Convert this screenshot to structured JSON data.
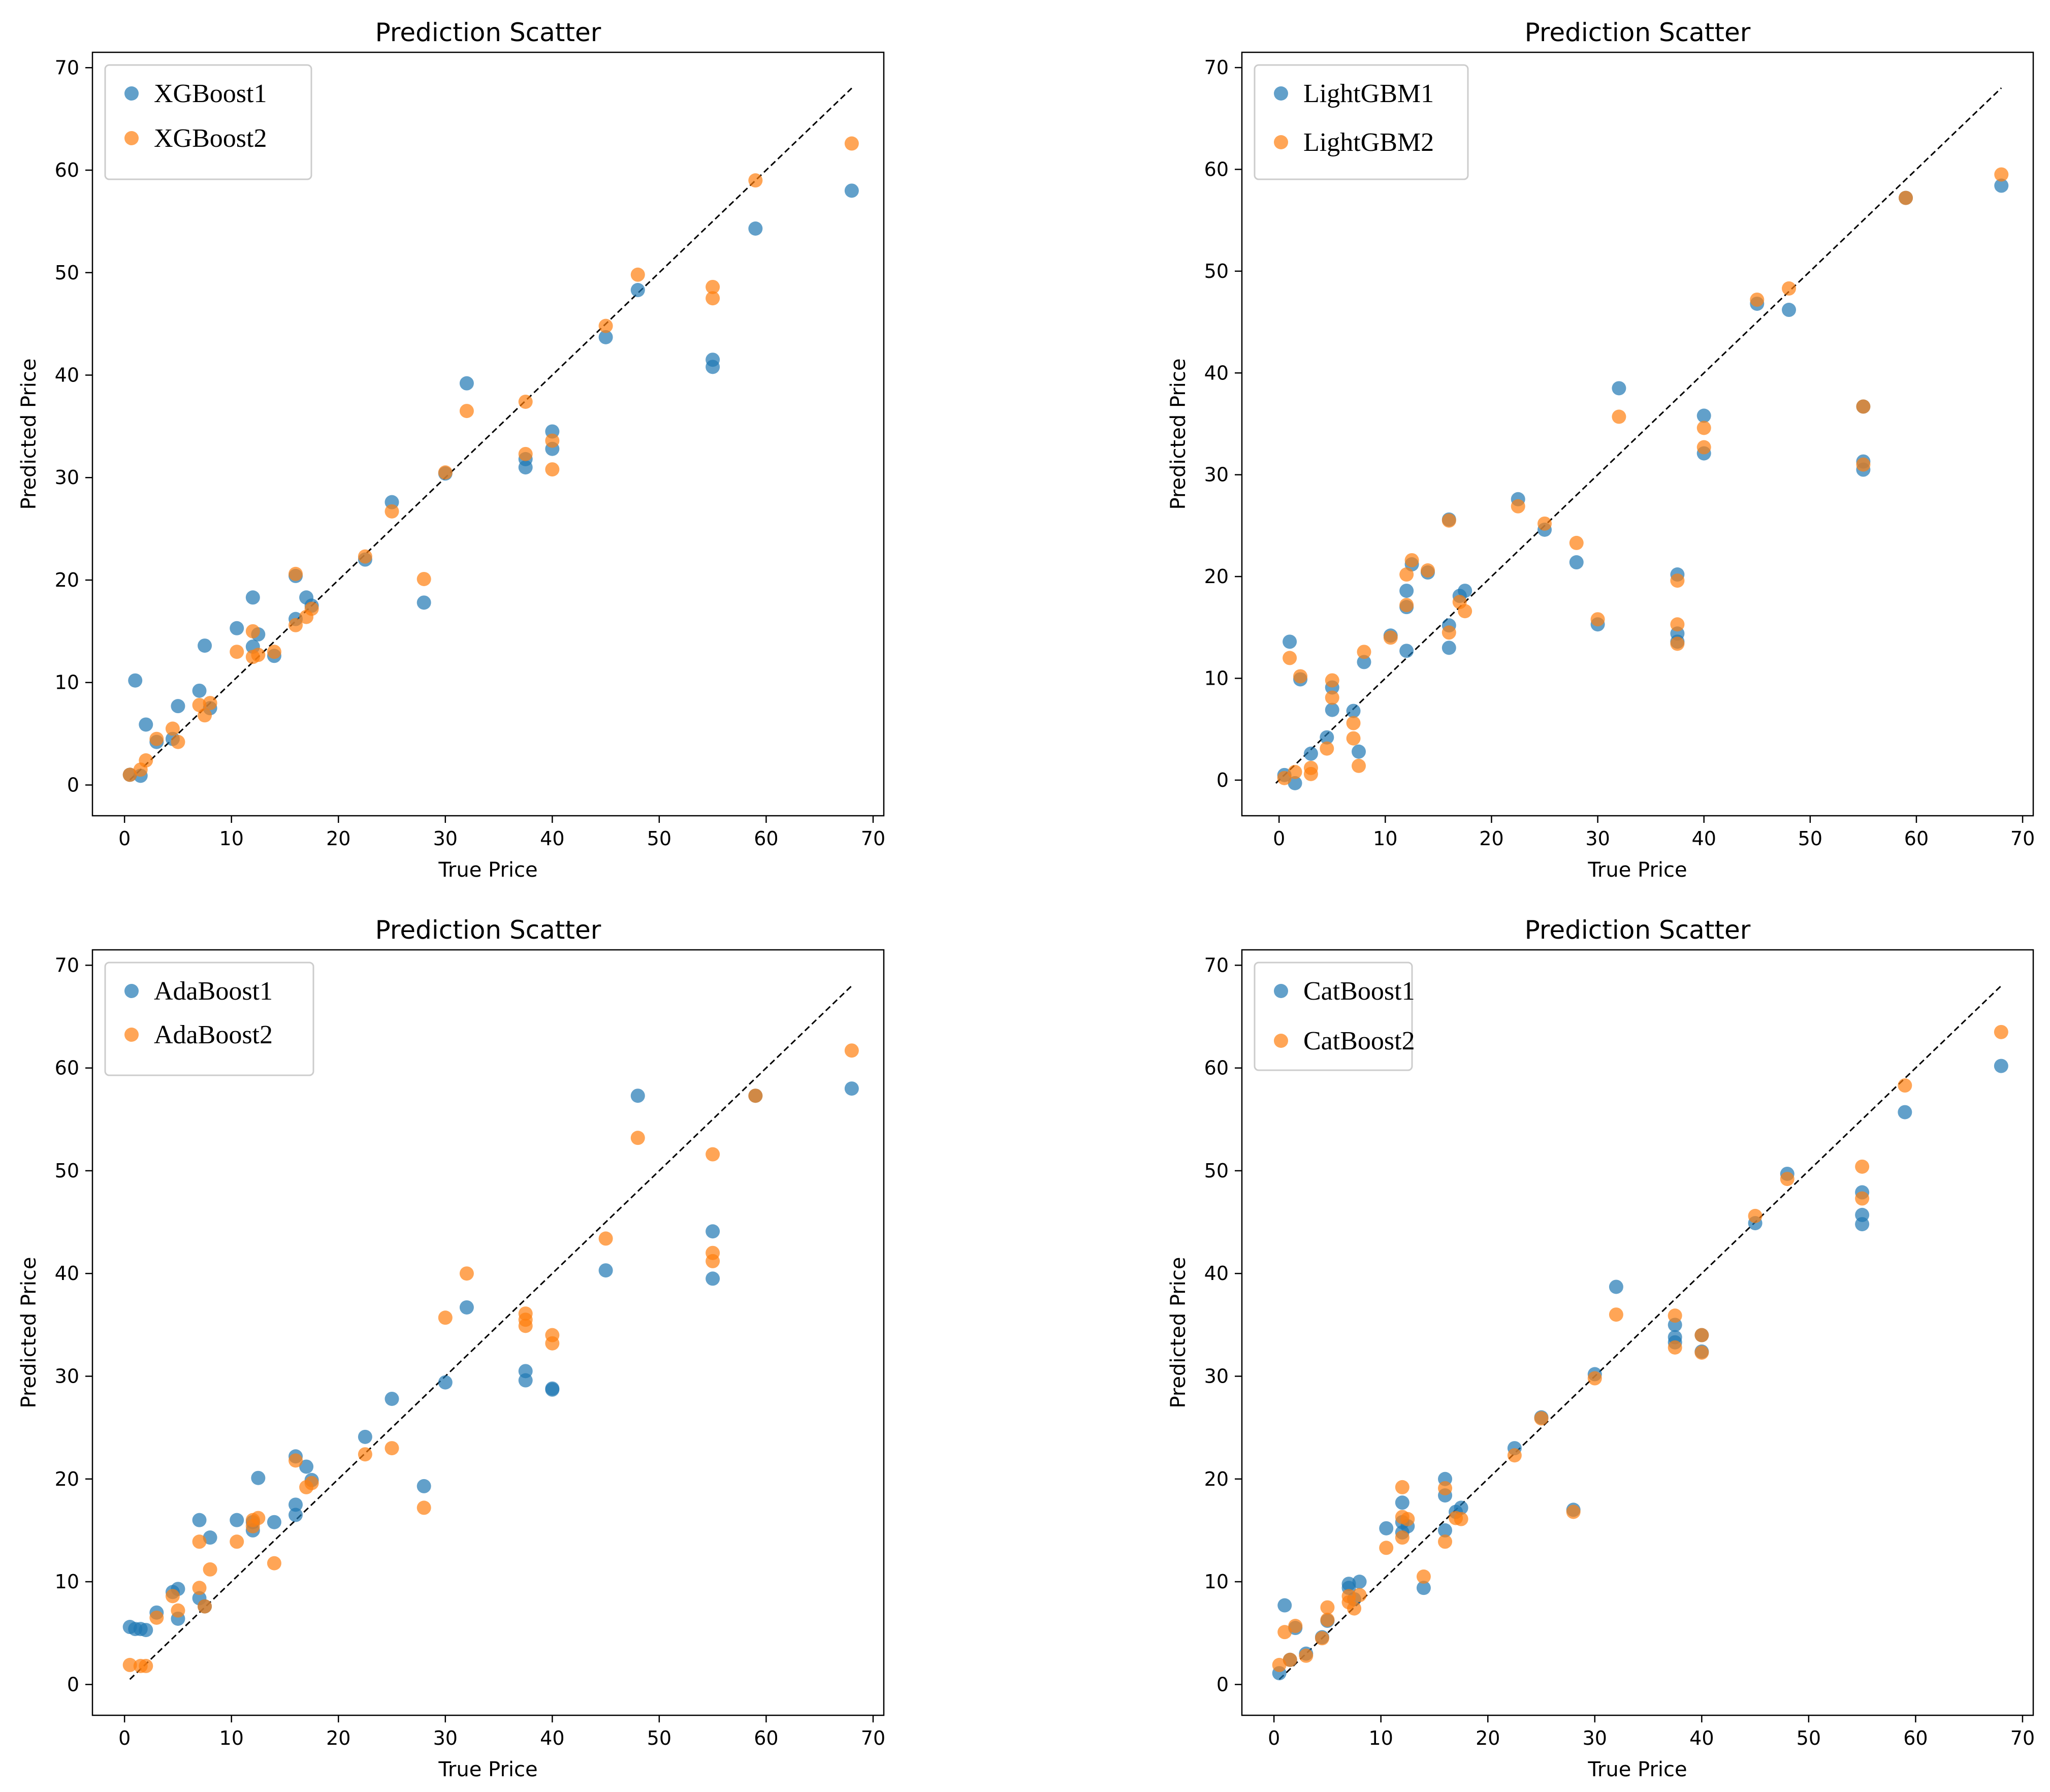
{
  "chart_data": [
    {
      "type": "scatter",
      "title": "Prediction Scatter",
      "xlabel": "True Price",
      "ylabel": "Predicted Price",
      "xlim": [
        -3,
        71
      ],
      "ylim": [
        -3,
        71.5
      ],
      "xticks": [
        "0",
        "10",
        "20",
        "30",
        "40",
        "50",
        "60",
        "70"
      ],
      "yticks": [
        "0",
        "10",
        "20",
        "30",
        "40",
        "50",
        "60",
        "70"
      ],
      "grid": false,
      "legend_position": "top-left",
      "reference_line": {
        "from": [
          0.5,
          0.5
        ],
        "to": [
          68,
          68
        ],
        "style": "dashed"
      },
      "series": [
        {
          "name": "XGBoost1",
          "color": "#1f77b4",
          "x": [
            0.5,
            1.0,
            1.5,
            2.0,
            3.0,
            4.5,
            5.0,
            7.0,
            7.5,
            8.0,
            10.5,
            12.0,
            12.0,
            12.5,
            14.0,
            16.0,
            16.0,
            17.0,
            17.5,
            22.5,
            25.0,
            28.0,
            30.0,
            32.0,
            37.5,
            37.5,
            40.0,
            40.0,
            45.0,
            48.0,
            55.0,
            55.0,
            59.0,
            68.0
          ],
          "y": [
            1.0,
            10.2,
            0.9,
            5.9,
            4.2,
            4.5,
            7.7,
            9.2,
            13.6,
            7.5,
            15.3,
            18.3,
            13.5,
            14.7,
            12.6,
            16.2,
            20.4,
            18.3,
            17.5,
            22.0,
            27.6,
            17.8,
            30.4,
            39.2,
            31.0,
            31.8,
            34.5,
            32.8,
            43.7,
            48.3,
            41.5,
            40.8,
            54.3,
            58.0
          ]
        },
        {
          "name": "XGBoost2",
          "color": "#ff7f0e",
          "x": [
            0.5,
            1.5,
            2.0,
            3.0,
            4.5,
            5.0,
            7.0,
            7.5,
            8.0,
            10.5,
            12.0,
            12.0,
            12.5,
            14.0,
            16.0,
            16.0,
            17.0,
            17.5,
            22.5,
            25.0,
            28.0,
            30.0,
            32.0,
            37.5,
            37.5,
            40.0,
            40.0,
            45.0,
            48.0,
            55.0,
            55.0,
            59.0,
            68.0
          ],
          "y": [
            1.0,
            1.5,
            2.4,
            4.5,
            5.5,
            4.2,
            7.8,
            6.8,
            8.0,
            13.0,
            15.0,
            12.5,
            12.7,
            13.0,
            15.6,
            20.6,
            16.4,
            17.2,
            22.3,
            26.7,
            20.1,
            30.5,
            36.5,
            37.4,
            32.3,
            33.6,
            30.8,
            44.8,
            49.8,
            48.6,
            47.5,
            59.0,
            62.6
          ]
        }
      ]
    },
    {
      "type": "scatter",
      "title": "Prediction Scatter",
      "xlabel": "True Price",
      "ylabel": "Predicted Price",
      "xlim": [
        -3.5,
        71
      ],
      "ylim": [
        -3.5,
        71.5
      ],
      "xticks": [
        "0",
        "10",
        "20",
        "30",
        "40",
        "50",
        "60",
        "70"
      ],
      "yticks": [
        "0",
        "10",
        "20",
        "30",
        "40",
        "50",
        "60",
        "70"
      ],
      "grid": false,
      "legend_position": "top-left",
      "reference_line": {
        "from": [
          -0.3,
          -0.3
        ],
        "to": [
          68,
          68
        ],
        "style": "dashed"
      },
      "series": [
        {
          "name": "LightGBM1",
          "color": "#1f77b4",
          "x": [
            0.5,
            1.0,
            1.5,
            2.0,
            3.0,
            4.5,
            5.0,
            5.0,
            7.0,
            7.5,
            8.0,
            10.5,
            12.0,
            12.0,
            12.0,
            12.5,
            14.0,
            16.0,
            16.0,
            16.0,
            17.0,
            17.5,
            22.5,
            25.0,
            28.0,
            30.0,
            32.0,
            37.5,
            37.5,
            37.5,
            40.0,
            40.0,
            45.0,
            48.0,
            55.0,
            55.0,
            55.0,
            59.0,
            68.0
          ],
          "y": [
            0.5,
            13.6,
            -0.3,
            9.9,
            2.6,
            4.2,
            9.1,
            6.9,
            6.8,
            2.8,
            11.6,
            14.2,
            18.6,
            17.0,
            12.7,
            21.2,
            20.4,
            13.0,
            15.2,
            25.6,
            18.1,
            18.6,
            27.6,
            24.6,
            21.4,
            15.3,
            38.5,
            20.2,
            14.4,
            13.6,
            35.8,
            32.1,
            46.8,
            46.2,
            36.7,
            31.3,
            30.5,
            57.2,
            58.4
          ]
        },
        {
          "name": "LightGBM2",
          "color": "#ff7f0e",
          "x": [
            0.5,
            1.0,
            1.5,
            2.0,
            3.0,
            3.0,
            4.5,
            5.0,
            5.0,
            7.0,
            7.0,
            7.5,
            8.0,
            10.5,
            12.0,
            12.0,
            12.5,
            14.0,
            16.0,
            16.0,
            17.0,
            17.5,
            22.5,
            25.0,
            28.0,
            30.0,
            32.0,
            37.5,
            37.5,
            37.5,
            40.0,
            40.0,
            45.0,
            48.0,
            55.0,
            55.0,
            59.0,
            68.0
          ],
          "y": [
            0.2,
            12.0,
            0.8,
            10.2,
            0.6,
            1.2,
            3.1,
            9.8,
            8.1,
            5.6,
            4.1,
            1.4,
            12.6,
            14.0,
            20.2,
            17.2,
            21.6,
            20.6,
            14.5,
            25.5,
            17.5,
            16.6,
            26.9,
            25.2,
            23.3,
            15.8,
            35.7,
            19.6,
            15.3,
            13.4,
            34.6,
            32.7,
            47.2,
            48.3,
            36.7,
            31.0,
            57.2,
            59.5
          ]
        }
      ]
    },
    {
      "type": "scatter",
      "title": "Prediction Scatter",
      "xlabel": "True Price",
      "ylabel": "Predicted Price",
      "xlim": [
        -3,
        71
      ],
      "ylim": [
        -3,
        71.5
      ],
      "xticks": [
        "0",
        "10",
        "20",
        "30",
        "40",
        "50",
        "60",
        "70"
      ],
      "yticks": [
        "0",
        "10",
        "20",
        "30",
        "40",
        "50",
        "60",
        "70"
      ],
      "grid": false,
      "legend_position": "top-left",
      "reference_line": {
        "from": [
          0.5,
          0.5
        ],
        "to": [
          68,
          68
        ],
        "style": "dashed"
      },
      "series": [
        {
          "name": "AdaBoost1",
          "color": "#1f77b4",
          "x": [
            0.5,
            1.0,
            1.5,
            2.0,
            3.0,
            4.5,
            5.0,
            5.0,
            7.0,
            7.0,
            7.5,
            8.0,
            10.5,
            12.0,
            12.0,
            12.5,
            14.0,
            16.0,
            16.0,
            16.0,
            17.0,
            17.5,
            22.5,
            25.0,
            28.0,
            30.0,
            32.0,
            37.5,
            37.5,
            40.0,
            40.0,
            45.0,
            48.0,
            55.0,
            55.0,
            59.0,
            68.0
          ],
          "y": [
            5.6,
            5.4,
            5.4,
            5.3,
            7.0,
            9.0,
            9.3,
            6.4,
            16.0,
            8.4,
            7.6,
            14.3,
            16.0,
            15.0,
            15.8,
            20.1,
            15.8,
            22.2,
            17.5,
            16.5,
            21.2,
            19.9,
            24.1,
            27.8,
            19.3,
            29.4,
            36.7,
            30.5,
            29.6,
            28.8,
            28.7,
            40.3,
            57.3,
            44.1,
            39.5,
            57.3,
            58.0
          ]
        },
        {
          "name": "AdaBoost2",
          "color": "#ff7f0e",
          "x": [
            0.5,
            1.5,
            2.0,
            3.0,
            4.5,
            5.0,
            7.0,
            7.0,
            7.5,
            8.0,
            10.5,
            12.0,
            12.0,
            12.5,
            14.0,
            16.0,
            17.0,
            17.5,
            22.5,
            25.0,
            28.0,
            30.0,
            32.0,
            37.5,
            37.5,
            37.5,
            40.0,
            40.0,
            45.0,
            48.0,
            55.0,
            55.0,
            55.0,
            59.0,
            68.0
          ],
          "y": [
            1.9,
            1.8,
            1.8,
            6.5,
            8.6,
            7.2,
            13.9,
            9.4,
            7.6,
            11.2,
            13.9,
            16.0,
            15.4,
            16.2,
            11.8,
            21.8,
            19.2,
            19.6,
            22.4,
            23.0,
            17.2,
            35.7,
            40.0,
            36.1,
            35.5,
            34.9,
            34.0,
            33.2,
            43.4,
            53.2,
            51.6,
            42.0,
            41.2,
            57.3,
            61.7
          ]
        }
      ]
    },
    {
      "type": "scatter",
      "title": "Prediction Scatter",
      "xlabel": "True Price",
      "ylabel": "Predicted Price",
      "xlim": [
        -3,
        71
      ],
      "ylim": [
        -3,
        71.5
      ],
      "xticks": [
        "0",
        "10",
        "20",
        "30",
        "40",
        "50",
        "60",
        "70"
      ],
      "yticks": [
        "0",
        "10",
        "20",
        "30",
        "40",
        "50",
        "60",
        "70"
      ],
      "grid": false,
      "legend_position": "top-left",
      "reference_line": {
        "from": [
          0.5,
          0.5
        ],
        "to": [
          68,
          68
        ],
        "style": "dashed"
      },
      "series": [
        {
          "name": "CatBoost1",
          "color": "#1f77b4",
          "x": [
            0.5,
            1.0,
            1.5,
            2.0,
            3.0,
            4.5,
            5.0,
            7.0,
            7.0,
            7.5,
            8.0,
            10.5,
            12.0,
            12.0,
            12.0,
            12.5,
            14.0,
            16.0,
            16.0,
            16.0,
            17.0,
            17.5,
            22.5,
            25.0,
            28.0,
            30.0,
            32.0,
            37.5,
            37.5,
            37.5,
            40.0,
            40.0,
            45.0,
            48.0,
            55.0,
            55.0,
            55.0,
            59.0,
            68.0
          ],
          "y": [
            1.1,
            7.7,
            2.4,
            5.5,
            3.0,
            4.6,
            6.2,
            9.8,
            9.4,
            8.3,
            10.0,
            15.2,
            17.7,
            15.8,
            14.8,
            15.4,
            9.4,
            20.0,
            18.4,
            15.0,
            16.8,
            17.2,
            23.0,
            26.0,
            17.0,
            30.2,
            38.7,
            35.0,
            33.8,
            33.3,
            34.0,
            32.4,
            44.9,
            49.7,
            47.9,
            45.7,
            44.8,
            55.7,
            60.2
          ]
        },
        {
          "name": "CatBoost2",
          "color": "#ff7f0e",
          "x": [
            0.5,
            1.0,
            1.5,
            2.0,
            3.0,
            4.5,
            5.0,
            5.0,
            7.0,
            7.0,
            7.5,
            8.0,
            10.5,
            12.0,
            12.0,
            12.0,
            12.5,
            14.0,
            16.0,
            16.0,
            17.0,
            17.5,
            22.5,
            25.0,
            28.0,
            30.0,
            32.0,
            37.5,
            37.5,
            40.0,
            40.0,
            45.0,
            48.0,
            55.0,
            55.0,
            59.0,
            68.0
          ],
          "y": [
            1.9,
            5.1,
            2.4,
            5.7,
            2.8,
            4.5,
            7.5,
            6.3,
            8.6,
            8.0,
            7.4,
            8.7,
            13.3,
            19.2,
            16.3,
            14.3,
            16.1,
            10.5,
            19.1,
            13.9,
            16.2,
            16.1,
            22.3,
            25.9,
            16.8,
            29.8,
            36.0,
            35.9,
            32.8,
            34.0,
            32.3,
            45.6,
            49.2,
            50.4,
            47.3,
            58.3,
            63.5
          ]
        }
      ]
    }
  ]
}
